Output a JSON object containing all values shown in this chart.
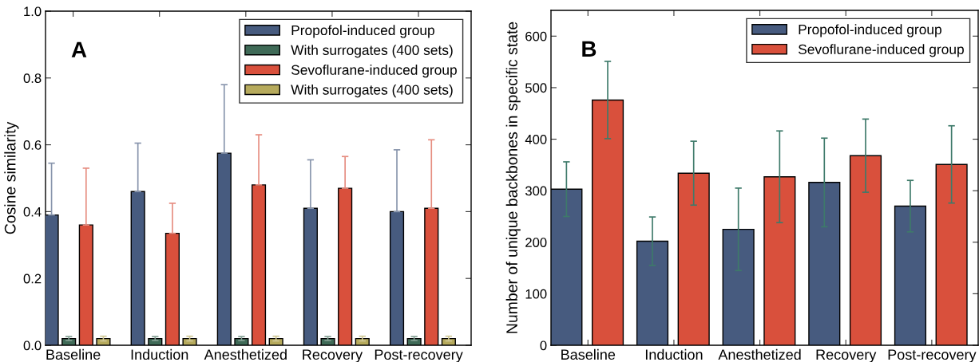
{
  "chart_data": [
    {
      "type": "bar",
      "ylabel": "Cosine similarity",
      "annotations": [
        "A"
      ],
      "categories": [
        "Baseline",
        "Induction",
        "Anesthetized",
        "Recovery",
        "Post-recovery"
      ],
      "series": [
        {
          "name": "Propofol-induced group",
          "color": "#475b7f",
          "values": [
            0.39,
            0.46,
            0.575,
            0.41,
            0.4
          ],
          "errors": [
            [
              0.39,
              0.545
            ],
            [
              0.46,
              0.605
            ],
            [
              0.575,
              0.78
            ],
            [
              0.41,
              0.555
            ],
            [
              0.4,
              0.585
            ]
          ]
        },
        {
          "name": "With surrogates (400 sets)",
          "color": "#3f6a57",
          "values": [
            0.02,
            0.02,
            0.02,
            0.02,
            0.02
          ],
          "errors": [
            0.006,
            0.006,
            0.006,
            0.006,
            0.006
          ]
        },
        {
          "name": "Sevoflurane-induced group",
          "color": "#d9503c",
          "values": [
            0.36,
            0.335,
            0.48,
            0.47,
            0.41
          ],
          "errors": [
            [
              0.36,
              0.53
            ],
            [
              0.335,
              0.425
            ],
            [
              0.48,
              0.63
            ],
            [
              0.47,
              0.565
            ],
            [
              0.41,
              0.615
            ]
          ]
        },
        {
          "name": "With surrogates (400 sets)",
          "color": "#b6aa5c",
          "values": [
            0.02,
            0.02,
            0.02,
            0.02,
            0.02
          ],
          "errors": [
            0.007,
            0.007,
            0.007,
            0.007,
            0.007
          ]
        }
      ],
      "ylim": [
        0,
        1
      ],
      "yticks": [
        {
          "value": 0,
          "label": "0.0"
        },
        {
          "value": 0.2,
          "label": "0.2"
        },
        {
          "value": 0.4,
          "label": "0.4"
        },
        {
          "value": 0.6,
          "label": "0.6"
        },
        {
          "value": 0.8,
          "label": "0.8"
        },
        {
          "value": 1,
          "label": "1.0"
        }
      ],
      "legend": "top right",
      "grid": false
    },
    {
      "type": "bar",
      "ylabel": "Number of unique backbones in specific state",
      "annotations": [
        "B"
      ],
      "categories": [
        "Baseline",
        "Induction",
        "Anesthetized",
        "Recovery",
        "Post-recovery"
      ],
      "series": [
        {
          "name": "Propofol-induced group",
          "color": "#475b7f",
          "values": [
            303,
            202,
            225,
            316,
            270
          ],
          "errors": [
            53,
            47,
            80,
            86,
            50
          ]
        },
        {
          "name": "Sevoflurane-induced group",
          "color": "#d9503c",
          "values": [
            476,
            334,
            327,
            368,
            351
          ],
          "errors": [
            75,
            62,
            89,
            71,
            75
          ]
        }
      ],
      "ylim": [
        0,
        650
      ],
      "yticks": [
        0,
        100,
        200,
        300,
        400,
        500,
        600
      ],
      "legend": "top right",
      "grid": false
    }
  ]
}
